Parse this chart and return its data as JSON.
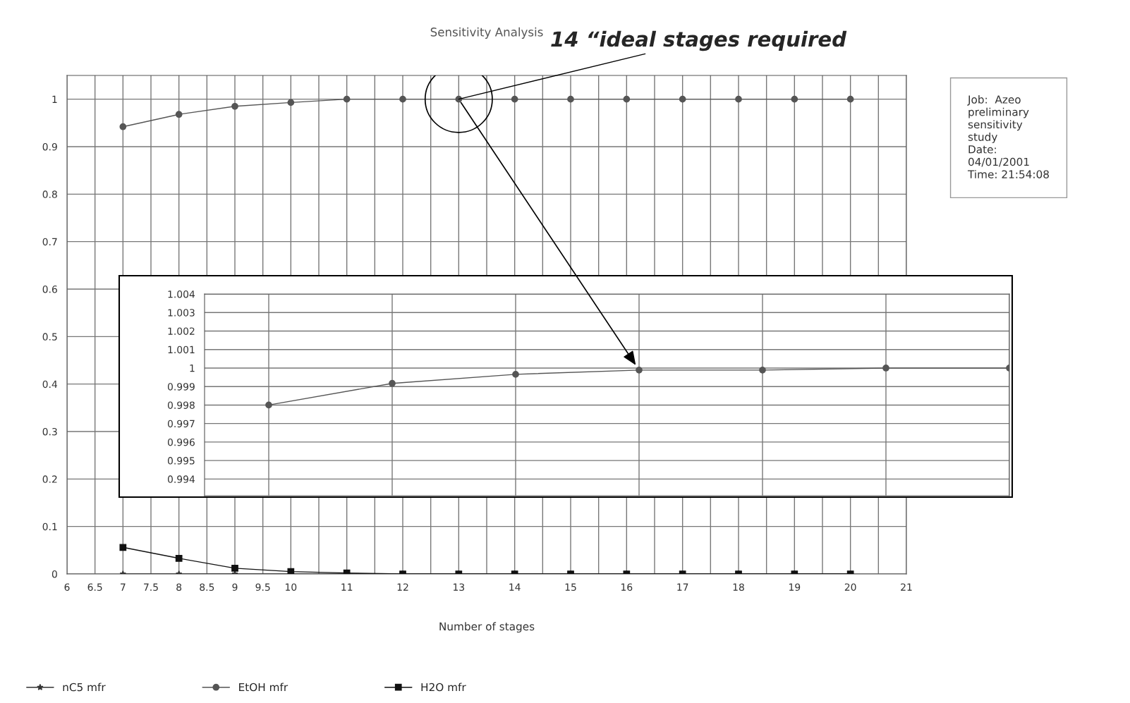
{
  "chart_data": [
    {
      "type": "line",
      "title": "Sensitivity Analysis",
      "xlabel": "Number of stages",
      "x": [
        7,
        8,
        9,
        10,
        11,
        12,
        13,
        14,
        15,
        16,
        17,
        18,
        19,
        20
      ],
      "series": [
        {
          "name": "nC5 mfr",
          "color": "#333333",
          "marker": "star",
          "values": [
            0,
            0,
            0,
            0,
            0,
            0,
            0,
            0,
            0,
            0,
            0,
            0,
            0,
            0
          ]
        },
        {
          "name": "EtOH mfr",
          "color": "#555555",
          "marker": "circle",
          "values": [
            0.942,
            0.968,
            0.985,
            0.993,
            1,
            1,
            1,
            1,
            1,
            1,
            1,
            1,
            1,
            1
          ]
        },
        {
          "name": "H2O mfr",
          "color": "#111111",
          "marker": "square",
          "values": [
            0.056,
            0.033,
            0.012,
            0.005,
            0.002,
            0,
            0,
            0,
            0,
            0,
            0,
            0,
            0,
            0
          ]
        }
      ],
      "xlim": [
        6,
        21
      ],
      "xticks": [
        6,
        6.5,
        7,
        7.5,
        8,
        8.5,
        9,
        9.5,
        10,
        {
          "value": 10.5,
          "label": null
        },
        11,
        {
          "value": 11.5,
          "label": null
        },
        12,
        {
          "value": 12.5,
          "label": null
        },
        13,
        {
          "value": 13.5,
          "label": null
        },
        14,
        {
          "value": 14.5,
          "label": null
        },
        15,
        {
          "value": 15.5,
          "label": null
        },
        16,
        {
          "value": 16.5,
          "label": null
        },
        17,
        {
          "value": 17.5,
          "label": null
        },
        18,
        {
          "value": 18.5,
          "label": null
        },
        19,
        {
          "value": 19.5,
          "label": null
        },
        20,
        {
          "value": 20.5,
          "label": null
        },
        21
      ],
      "ylim": [
        0,
        1.05
      ],
      "yticks": [
        0,
        0.1,
        0.2,
        0.3,
        0.4,
        0.5,
        0.6,
        0.7,
        0.8,
        0.9,
        1
      ],
      "grid": true,
      "legend": "bottom",
      "annotations": [
        {
          "text": "14 “ideal stages required",
          "x": 13,
          "y": 1
        },
        "Job:  Azeo\npreliminary\nsensitivity\nstudy\nDate:\n04/01/2001\nTime: 21:54:08"
      ]
    },
    {
      "type": "line",
      "categories": [
        null,
        null,
        null,
        null,
        null,
        null,
        null
      ],
      "series": [
        {
          "color": "#555555",
          "marker": "circle",
          "values": [
            0.998,
            0.99917,
            0.99966,
            0.99989,
            0.99989,
            1.0,
            1.0
          ]
        }
      ],
      "ylim": [
        0.9931,
        1.004
      ],
      "yticks": [
        0.994,
        0.995,
        0.996,
        0.997,
        0.998,
        0.999,
        1,
        1.001,
        1.002,
        1.003,
        1.004
      ],
      "grid": true,
      "tick_labels": "y"
    }
  ]
}
